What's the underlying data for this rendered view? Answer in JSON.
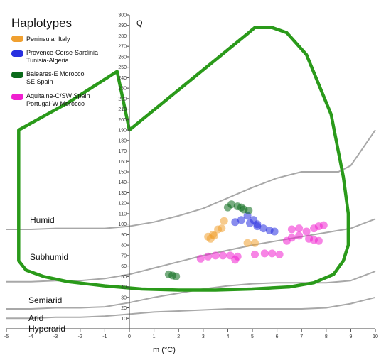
{
  "chart_data": {
    "type": "scatter",
    "title": "",
    "xlabel": "m (°C)",
    "ylabel": "Q",
    "xlim": [
      -5,
      10
    ],
    "ylim": [
      0,
      300
    ],
    "x_ticks": [
      "-5",
      "-4",
      "-3",
      "-2",
      "-1",
      "0",
      "1",
      "2",
      "3",
      "4",
      "5",
      "6",
      "7",
      "8",
      "9",
      "10"
    ],
    "y_ticks": [
      "10",
      "20",
      "30",
      "40",
      "50",
      "60",
      "70",
      "80",
      "90",
      "100",
      "110",
      "120",
      "130",
      "140",
      "150",
      "160",
      "170",
      "180",
      "190",
      "200",
      "210",
      "220",
      "230",
      "240",
      "250",
      "260",
      "270",
      "280",
      "290",
      "300"
    ],
    "legend": {
      "title": "Haplotypes",
      "placement": "top-left",
      "entries": [
        {
          "lines": [
            "Peninsular Italy"
          ],
          "color": "#f0a030"
        },
        {
          "lines": [
            "Provence-Corse-Sardinia",
            "Tunisia-Algeria"
          ],
          "color": "#2830e0"
        },
        {
          "lines": [
            "Baleares-E Morocco",
            "SE Spain"
          ],
          "color": "#0a6a1a"
        },
        {
          "lines": [
            "Aquitaine-C/SW Spain",
            "Portugal-W Morocco"
          ],
          "color": "#f020d0"
        }
      ]
    },
    "zones": [
      "Humid",
      "Subhumid",
      "Semiarid",
      "Arid",
      "Hyperarid"
    ],
    "boundaries": [
      {
        "points": [
          [
            -5,
            10
          ],
          [
            -4,
            10
          ],
          [
            -3,
            11
          ],
          [
            -2,
            11
          ],
          [
            -1,
            12
          ],
          [
            0,
            14
          ],
          [
            1,
            16
          ],
          [
            2,
            17
          ],
          [
            3,
            18
          ],
          [
            4,
            19
          ],
          [
            5,
            19
          ],
          [
            6,
            19
          ],
          [
            7,
            19
          ],
          [
            8,
            20
          ],
          [
            9,
            24
          ],
          [
            10,
            30
          ]
        ]
      },
      {
        "points": [
          [
            -5,
            19
          ],
          [
            -4,
            19
          ],
          [
            -3,
            20
          ],
          [
            -2,
            20
          ],
          [
            -1,
            21
          ],
          [
            0,
            25
          ],
          [
            1,
            30
          ],
          [
            2,
            34
          ],
          [
            3,
            38
          ],
          [
            4,
            41
          ],
          [
            5,
            43
          ],
          [
            6,
            44
          ],
          [
            7,
            44
          ],
          [
            8,
            44
          ],
          [
            9,
            46
          ],
          [
            10,
            55
          ]
        ]
      },
      {
        "points": [
          [
            -5,
            45
          ],
          [
            -4,
            45
          ],
          [
            -3,
            46
          ],
          [
            -2,
            46
          ],
          [
            -1,
            48
          ],
          [
            0,
            52
          ],
          [
            1,
            58
          ],
          [
            2,
            64
          ],
          [
            3,
            70
          ],
          [
            4,
            75
          ],
          [
            5,
            80
          ],
          [
            6,
            84
          ],
          [
            7,
            88
          ],
          [
            8,
            92
          ],
          [
            9,
            96
          ],
          [
            10,
            105
          ]
        ]
      },
      {
        "points": [
          [
            -5,
            95
          ],
          [
            -4,
            95
          ],
          [
            -3,
            96
          ],
          [
            -2,
            96
          ],
          [
            -1,
            96
          ],
          [
            0,
            98
          ],
          [
            1,
            102
          ],
          [
            2,
            108
          ],
          [
            3,
            115
          ],
          [
            4,
            125
          ],
          [
            5,
            135
          ],
          [
            6,
            144
          ],
          [
            7,
            150
          ],
          [
            8,
            150
          ],
          [
            8.5,
            150
          ],
          [
            9,
            156
          ],
          [
            10,
            190
          ]
        ]
      }
    ],
    "envelope": {
      "color": "#2a9a1a",
      "points": [
        [
          -4.5,
          190
        ],
        [
          -2.5,
          216
        ],
        [
          -0.5,
          246
        ],
        [
          0,
          190
        ],
        [
          4.8,
          282
        ],
        [
          5.1,
          288
        ],
        [
          5.8,
          288
        ],
        [
          6.4,
          283
        ],
        [
          7.2,
          262
        ],
        [
          8.2,
          205
        ],
        [
          8.7,
          145
        ],
        [
          8.9,
          110
        ],
        [
          8.9,
          80
        ],
        [
          8.7,
          65
        ],
        [
          8.3,
          52
        ],
        [
          7.5,
          44
        ],
        [
          6.5,
          40
        ],
        [
          5,
          38
        ],
        [
          3.5,
          37
        ],
        [
          2,
          37
        ],
        [
          0.5,
          38
        ],
        [
          -1,
          41
        ],
        [
          -2.5,
          45
        ],
        [
          -3.5,
          50
        ],
        [
          -4.2,
          56
        ],
        [
          -4.5,
          65
        ],
        [
          -4.5,
          80
        ],
        [
          -4.5,
          130
        ],
        [
          -4.5,
          190
        ]
      ]
    },
    "series": [
      {
        "color": "#f0a030",
        "points": [
          [
            3.2,
            88
          ],
          [
            3.45,
            89
          ],
          [
            3.3,
            86
          ],
          [
            3.75,
            96
          ],
          [
            3.85,
            103
          ],
          [
            3.6,
            95
          ],
          [
            4.8,
            82
          ],
          [
            5.1,
            82
          ],
          [
            3.4,
            90
          ]
        ]
      },
      {
        "color": "#2830e0",
        "points": [
          [
            4.3,
            102
          ],
          [
            4.55,
            104
          ],
          [
            4.9,
            101
          ],
          [
            5.2,
            98
          ],
          [
            5.45,
            96
          ],
          [
            5.7,
            94
          ],
          [
            5.9,
            93
          ],
          [
            5.2,
            100
          ],
          [
            4.8,
            108
          ],
          [
            5.05,
            104
          ]
        ]
      },
      {
        "color": "#0a6a1a",
        "points": [
          [
            4.0,
            116
          ],
          [
            4.15,
            119
          ],
          [
            4.4,
            117
          ],
          [
            4.65,
            114
          ],
          [
            4.85,
            113
          ],
          [
            4.55,
            116
          ],
          [
            1.6,
            52
          ],
          [
            1.75,
            51
          ],
          [
            1.9,
            50
          ]
        ]
      },
      {
        "color": "#f020d0",
        "points": [
          [
            2.9,
            67
          ],
          [
            3.2,
            69
          ],
          [
            3.5,
            70
          ],
          [
            3.8,
            70
          ],
          [
            4.1,
            70
          ],
          [
            4.4,
            69
          ],
          [
            5.1,
            71
          ],
          [
            5.5,
            72
          ],
          [
            5.8,
            72
          ],
          [
            6.1,
            71
          ],
          [
            6.4,
            84
          ],
          [
            6.6,
            87
          ],
          [
            6.9,
            89
          ],
          [
            7.2,
            93
          ],
          [
            7.5,
            96
          ],
          [
            7.7,
            98
          ],
          [
            7.9,
            99
          ],
          [
            7.3,
            86
          ],
          [
            7.5,
            85
          ],
          [
            7.7,
            84
          ],
          [
            6.6,
            95
          ],
          [
            6.9,
            96
          ],
          [
            4.3,
            66
          ]
        ]
      }
    ]
  }
}
